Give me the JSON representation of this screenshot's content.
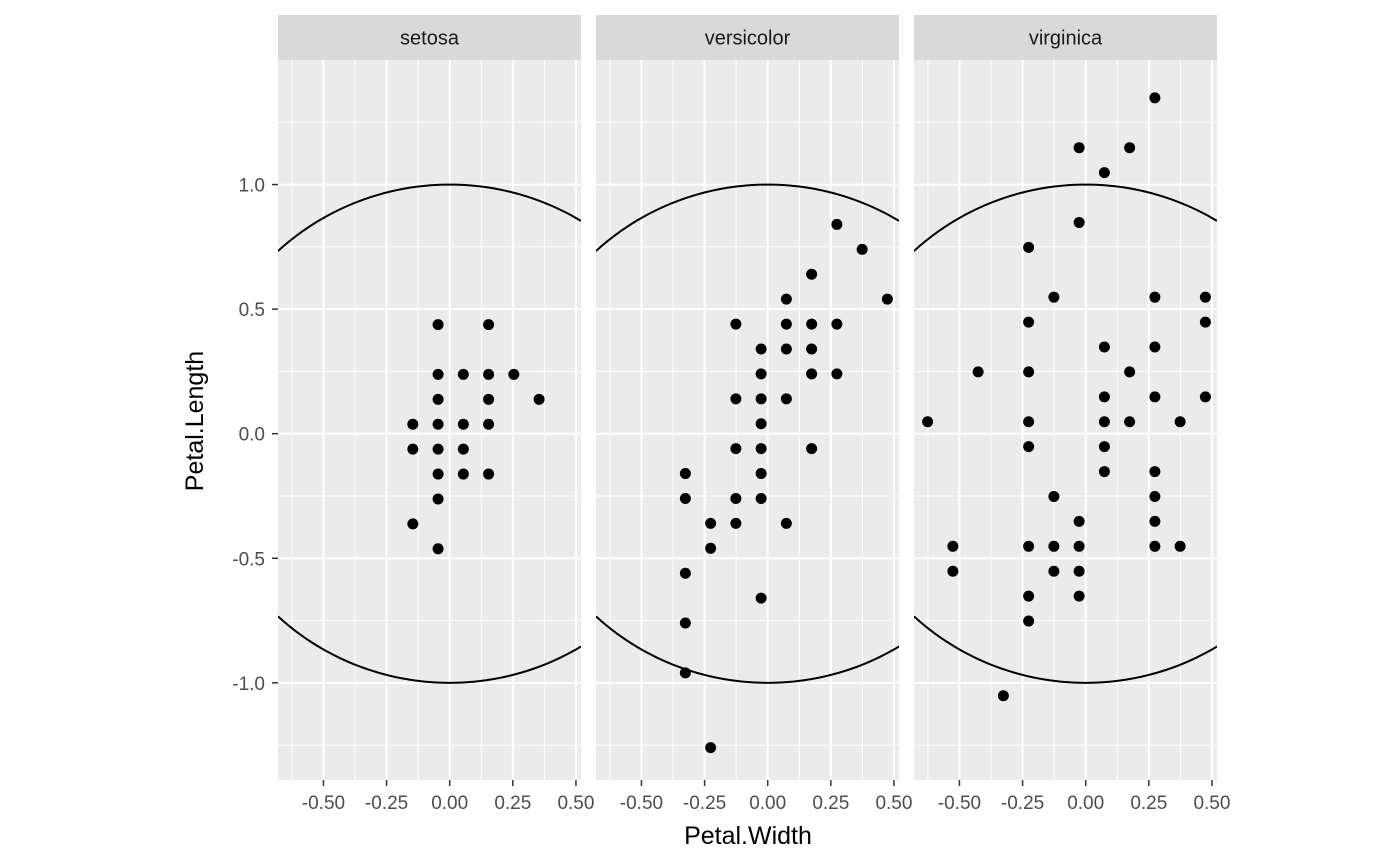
{
  "chart_data": {
    "type": "scatter",
    "facet_by": "Species",
    "xlabel": "Petal.Width",
    "ylabel": "Petal.Length",
    "xlim": [
      -0.68,
      0.52
    ],
    "ylim": [
      -1.39,
      1.5
    ],
    "x_ticks": [
      -0.5,
      -0.25,
      0.0,
      0.25,
      0.5
    ],
    "x_tick_labels": [
      "-0.50",
      "-0.25",
      "0.00",
      "0.25",
      "0.50"
    ],
    "y_ticks": [
      -1.0,
      -0.5,
      0.0,
      0.5,
      1.0
    ],
    "y_tick_labels": [
      "-1.0",
      "-0.5",
      "0.0",
      "0.5",
      "1.0"
    ],
    "grid": true,
    "overlay": "unit circle x^2 + y^2 = 1",
    "colors": {
      "panel_bg": "#ebebeb",
      "strip_bg": "#d9d9d9",
      "grid": "#ffffff",
      "point": "#000000",
      "circle": "#000000"
    },
    "panels": [
      {
        "label": "setosa",
        "points": [
          [
            -0.046,
            0.438
          ],
          [
            0.154,
            0.438
          ],
          [
            -0.046,
            0.238
          ],
          [
            0.054,
            0.238
          ],
          [
            0.154,
            0.238
          ],
          [
            0.254,
            0.238
          ],
          [
            -0.046,
            0.138
          ],
          [
            0.154,
            0.138
          ],
          [
            0.354,
            0.138
          ],
          [
            -0.146,
            0.038
          ],
          [
            -0.046,
            0.038
          ],
          [
            0.054,
            0.038
          ],
          [
            0.154,
            0.038
          ],
          [
            -0.146,
            -0.062
          ],
          [
            -0.046,
            -0.062
          ],
          [
            0.054,
            -0.062
          ],
          [
            -0.046,
            -0.162
          ],
          [
            0.054,
            -0.162
          ],
          [
            0.154,
            -0.162
          ],
          [
            -0.046,
            -0.262
          ],
          [
            -0.146,
            -0.362
          ],
          [
            -0.046,
            -0.462
          ]
        ]
      },
      {
        "label": "versicolor",
        "points": [
          [
            0.274,
            0.84
          ],
          [
            0.374,
            0.74
          ],
          [
            0.174,
            0.64
          ],
          [
            0.074,
            0.54
          ],
          [
            0.474,
            0.54
          ],
          [
            -0.126,
            0.44
          ],
          [
            0.074,
            0.44
          ],
          [
            0.174,
            0.44
          ],
          [
            0.274,
            0.44
          ],
          [
            -0.026,
            0.34
          ],
          [
            0.074,
            0.34
          ],
          [
            0.174,
            0.34
          ],
          [
            -0.026,
            0.24
          ],
          [
            0.174,
            0.24
          ],
          [
            0.274,
            0.24
          ],
          [
            -0.126,
            0.14
          ],
          [
            -0.026,
            0.14
          ],
          [
            0.074,
            0.14
          ],
          [
            -0.026,
            0.04
          ],
          [
            -0.126,
            -0.06
          ],
          [
            -0.026,
            -0.06
          ],
          [
            0.174,
            -0.06
          ],
          [
            -0.326,
            -0.16
          ],
          [
            -0.026,
            -0.16
          ],
          [
            -0.326,
            -0.26
          ],
          [
            -0.126,
            -0.26
          ],
          [
            -0.026,
            -0.26
          ],
          [
            -0.226,
            -0.36
          ],
          [
            -0.126,
            -0.36
          ],
          [
            0.074,
            -0.36
          ],
          [
            -0.226,
            -0.46
          ],
          [
            -0.326,
            -0.56
          ],
          [
            -0.026,
            -0.66
          ],
          [
            -0.326,
            -0.76
          ],
          [
            -0.326,
            -0.96
          ],
          [
            -0.226,
            -1.26
          ]
        ]
      },
      {
        "label": "virginica",
        "points": [
          [
            0.274,
            1.348
          ],
          [
            -0.026,
            1.148
          ],
          [
            0.174,
            1.148
          ],
          [
            0.074,
            1.048
          ],
          [
            -0.026,
            0.848
          ],
          [
            -0.226,
            0.748
          ],
          [
            -0.126,
            0.548
          ],
          [
            0.274,
            0.548
          ],
          [
            0.474,
            0.548
          ],
          [
            -0.226,
            0.448
          ],
          [
            0.474,
            0.448
          ],
          [
            0.074,
            0.348
          ],
          [
            0.274,
            0.348
          ],
          [
            -0.426,
            0.248
          ],
          [
            -0.226,
            0.248
          ],
          [
            0.174,
            0.248
          ],
          [
            0.074,
            0.148
          ],
          [
            0.274,
            0.148
          ],
          [
            0.474,
            0.148
          ],
          [
            -0.626,
            0.048
          ],
          [
            -0.226,
            0.048
          ],
          [
            0.074,
            0.048
          ],
          [
            0.174,
            0.048
          ],
          [
            0.374,
            0.048
          ],
          [
            -0.226,
            -0.052
          ],
          [
            0.074,
            -0.052
          ],
          [
            0.074,
            -0.152
          ],
          [
            0.274,
            -0.152
          ],
          [
            -0.126,
            -0.252
          ],
          [
            0.274,
            -0.252
          ],
          [
            -0.026,
            -0.352
          ],
          [
            0.274,
            -0.352
          ],
          [
            -0.526,
            -0.452
          ],
          [
            -0.226,
            -0.452
          ],
          [
            -0.126,
            -0.452
          ],
          [
            -0.026,
            -0.452
          ],
          [
            0.274,
            -0.452
          ],
          [
            0.374,
            -0.452
          ],
          [
            -0.526,
            -0.552
          ],
          [
            -0.126,
            -0.552
          ],
          [
            -0.026,
            -0.552
          ],
          [
            -0.226,
            -0.652
          ],
          [
            -0.026,
            -0.652
          ],
          [
            -0.226,
            -0.752
          ],
          [
            -0.326,
            -1.052
          ]
        ]
      }
    ]
  }
}
